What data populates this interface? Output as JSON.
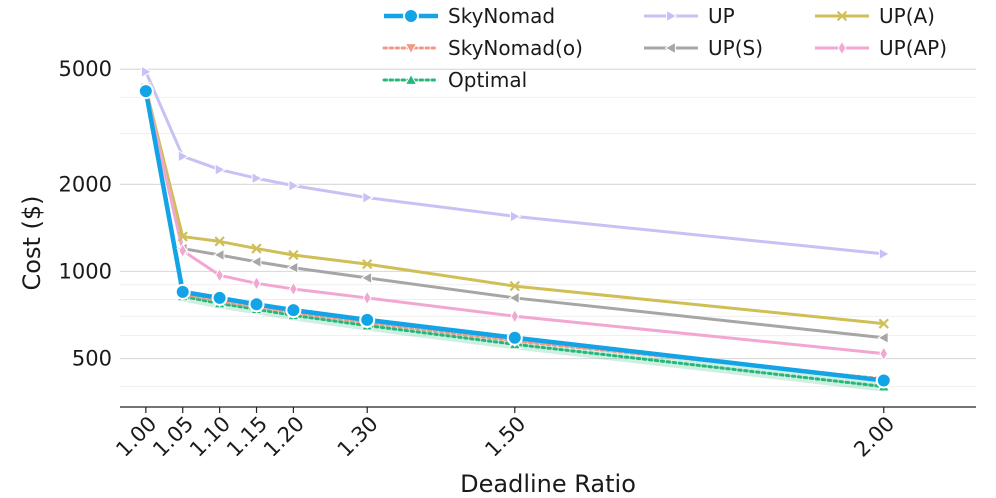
{
  "chart_data": {
    "type": "line",
    "title": "",
    "xlabel": "Deadline Ratio",
    "ylabel": "Cost ($)",
    "yscale": "log",
    "ylim": [
      340,
      5600
    ],
    "xlim": [
      0.965,
      2.125
    ],
    "x": [
      1.0,
      1.05,
      1.1,
      1.15,
      1.2,
      1.3,
      1.5,
      2.0
    ],
    "x_tick_labels": [
      "1.00",
      "1.05",
      "1.10",
      "1.15",
      "1.20",
      "1.30",
      "1.50",
      "2.00"
    ],
    "y_ticks": [
      500,
      1000,
      2000,
      5000
    ],
    "y_tick_labels": [
      "500",
      "1000",
      "2000",
      "5000"
    ],
    "legend_position": "top-right",
    "series": [
      {
        "name": "SkyNomad",
        "color": "#12a4e6",
        "marker": "circle",
        "style": "solid",
        "width": 4.5,
        "values": [
          4200,
          850,
          810,
          770,
          735,
          680,
          590,
          420
        ]
      },
      {
        "name": "SkyNomad(o)",
        "color": "#f29a88",
        "marker": "triangle-down",
        "style": "dotted",
        "width": 3,
        "values": [
          4250,
          835,
          790,
          755,
          720,
          665,
          575,
          425
        ]
      },
      {
        "name": "Optimal",
        "color": "#26b87a",
        "marker": "triangle-up",
        "style": "dotted",
        "width": 3,
        "values": [
          4150,
          820,
          775,
          740,
          705,
          650,
          560,
          400
        ]
      },
      {
        "name": "UP",
        "color": "#c6c2f5",
        "marker": "triangle-right",
        "style": "solid",
        "width": 3,
        "values": [
          4900,
          2500,
          2250,
          2100,
          1980,
          1800,
          1550,
          1150
        ]
      },
      {
        "name": "UP(S)",
        "color": "#a6a6a6",
        "marker": "triangle-left",
        "style": "solid",
        "width": 3,
        "values": [
          4300,
          1200,
          1140,
          1080,
          1030,
          950,
          810,
          590
        ]
      },
      {
        "name": "UP(A)",
        "color": "#cfbf56",
        "marker": "x",
        "style": "solid",
        "width": 3,
        "values": [
          4300,
          1320,
          1270,
          1200,
          1140,
          1060,
          890,
          660
        ]
      },
      {
        "name": "UP(AP)",
        "color": "#f2a6d2",
        "marker": "diamond",
        "style": "solid",
        "width": 3,
        "values": [
          4250,
          1180,
          970,
          910,
          870,
          810,
          700,
          520
        ]
      }
    ]
  }
}
